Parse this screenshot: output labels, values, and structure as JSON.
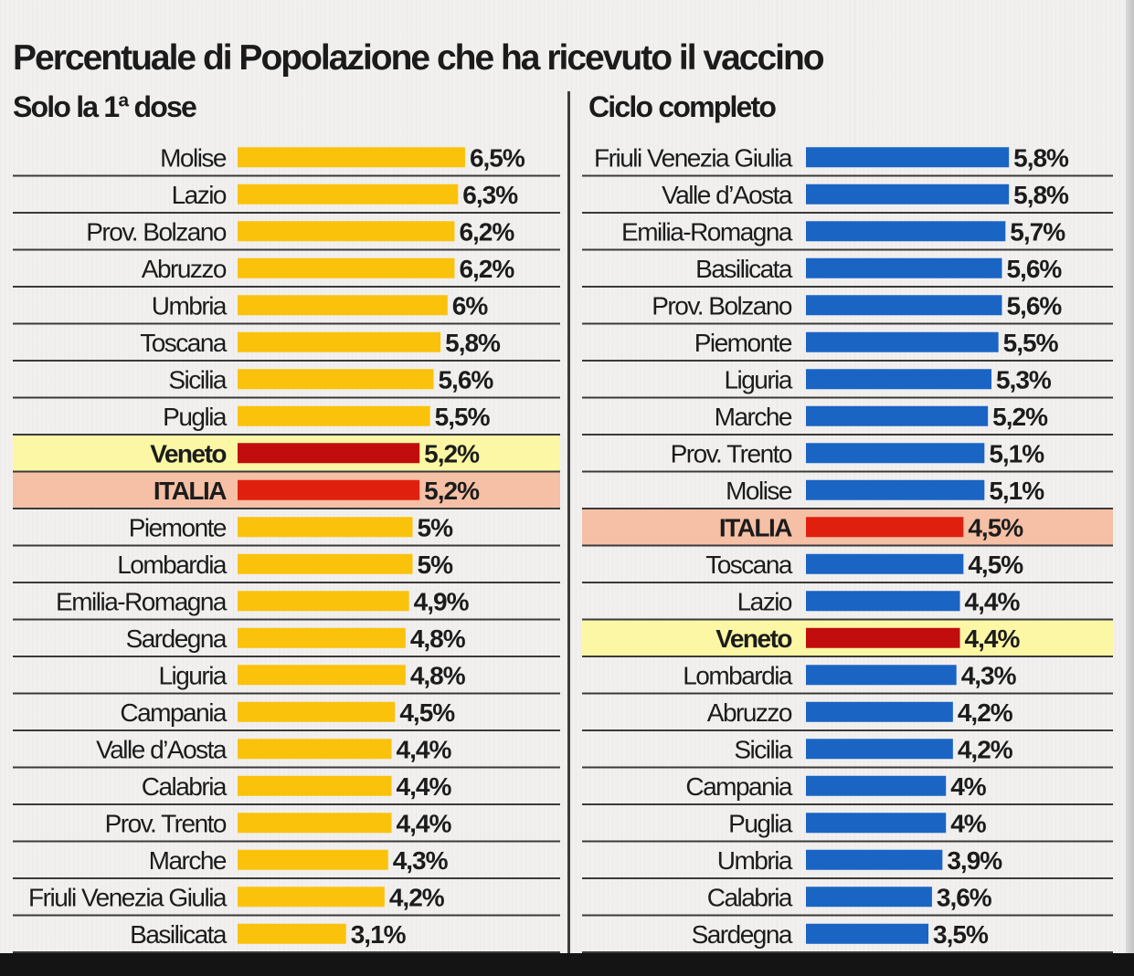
{
  "title": "Percentuale di Popolazione che ha ricevuto il vaccino",
  "colors": {
    "first_dose_bar": "#fbc20c",
    "full_cycle_bar": "#1a64c4",
    "veneto_bar": "#c10d0d",
    "italia_bar": "#e0200e",
    "veneto_row_bg": "#fbf7a4",
    "italia_row_bg": "#f5c0a5",
    "row_rule": "#3a3a3a"
  },
  "chart_data": [
    {
      "type": "bar",
      "orientation": "horizontal",
      "title": "Solo la 1ª dose",
      "unit": "%",
      "categories": [
        "Molise",
        "Lazio",
        "Prov. Bolzano",
        "Abruzzo",
        "Umbria",
        "Toscana",
        "Sicilia",
        "Puglia",
        "Veneto",
        "ITALIA",
        "Piemonte",
        "Lombardia",
        "Emilia-Romagna",
        "Sardegna",
        "Liguria",
        "Campania",
        "Valle d’Aosta",
        "Calabria",
        "Prov. Trento",
        "Marche",
        "Friuli Venezia Giulia",
        "Basilicata"
      ],
      "values": [
        6.5,
        6.3,
        6.2,
        6.2,
        6.0,
        5.8,
        5.6,
        5.5,
        5.2,
        5.2,
        5.0,
        5.0,
        4.9,
        4.8,
        4.8,
        4.5,
        4.4,
        4.4,
        4.4,
        4.3,
        4.2,
        3.1
      ],
      "value_labels": [
        "6,5%",
        "6,3%",
        "6,2%",
        "6,2%",
        "6%",
        "5,8%",
        "5,6%",
        "5,5%",
        "5,2%",
        "5,2%",
        "5%",
        "5%",
        "4,9%",
        "4,8%",
        "4,8%",
        "4,5%",
        "4,4%",
        "4,4%",
        "4,4%",
        "4,3%",
        "4,2%",
        "3,1%"
      ],
      "highlight": {
        "Veneto": "veneto",
        "ITALIA": "italia"
      }
    },
    {
      "type": "bar",
      "orientation": "horizontal",
      "title": "Ciclo completo",
      "unit": "%",
      "categories": [
        "Friuli Venezia Giulia",
        "Valle d’Aosta",
        "Emilia-Romagna",
        "Basilicata",
        "Prov. Bolzano",
        "Piemonte",
        "Liguria",
        "Marche",
        "Prov. Trento",
        "Molise",
        "ITALIA",
        "Toscana",
        "Lazio",
        "Veneto",
        "Lombardia",
        "Abruzzo",
        "Sicilia",
        "Campania",
        "Puglia",
        "Umbria",
        "Calabria",
        "Sardegna"
      ],
      "values": [
        5.8,
        5.8,
        5.7,
        5.6,
        5.6,
        5.5,
        5.3,
        5.2,
        5.1,
        5.1,
        4.5,
        4.5,
        4.4,
        4.4,
        4.3,
        4.2,
        4.2,
        4.0,
        4.0,
        3.9,
        3.6,
        3.5
      ],
      "value_labels": [
        "5,8%",
        "5,8%",
        "5,7%",
        "5,6%",
        "5,6%",
        "5,5%",
        "5,3%",
        "5,2%",
        "5,1%",
        "5,1%",
        "4,5%",
        "4,5%",
        "4,4%",
        "4,4%",
        "4,3%",
        "4,2%",
        "4,2%",
        "4%",
        "4%",
        "3,9%",
        "3,6%",
        "3,5%"
      ],
      "highlight": {
        "ITALIA": "italia",
        "Veneto": "veneto"
      }
    }
  ]
}
